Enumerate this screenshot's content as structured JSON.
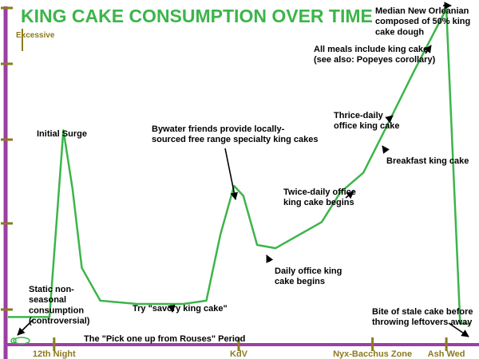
{
  "chart_data": {
    "type": "line",
    "title": "KING CAKE CONSUMPTION OVER TIME",
    "xlabel": "",
    "ylabel": "",
    "y_top_label": "Excessive",
    "xlim": [
      0,
      100
    ],
    "ylim": [
      0,
      100
    ],
    "x_ticks": [
      {
        "label": "12th Night",
        "x": 10
      },
      {
        "label": "KdV",
        "x": 50
      },
      {
        "label": "Nyx-Bacchus Zone",
        "x": 79
      },
      {
        "label": "Ash Wed",
        "x": 95
      }
    ],
    "series": [
      {
        "points": [
          {
            "x": 0,
            "y": 5
          },
          {
            "x": 7,
            "y": 5
          },
          {
            "x": 9,
            "y": 5
          },
          {
            "x": 12,
            "y": 62
          },
          {
            "x": 14,
            "y": 44
          },
          {
            "x": 16,
            "y": 20
          },
          {
            "x": 20,
            "y": 10
          },
          {
            "x": 28,
            "y": 9
          },
          {
            "x": 38,
            "y": 9
          },
          {
            "x": 43,
            "y": 10
          },
          {
            "x": 46,
            "y": 30
          },
          {
            "x": 49,
            "y": 45
          },
          {
            "x": 51,
            "y": 42
          },
          {
            "x": 54,
            "y": 27
          },
          {
            "x": 58,
            "y": 26
          },
          {
            "x": 68,
            "y": 34
          },
          {
            "x": 72,
            "y": 43
          },
          {
            "x": 77,
            "y": 49
          },
          {
            "x": 82,
            "y": 63
          },
          {
            "x": 88,
            "y": 80
          },
          {
            "x": 95,
            "y": 99
          },
          {
            "x": 98,
            "y": 3
          },
          {
            "x": 100,
            "y": 3
          }
        ]
      }
    ],
    "annotations": [
      {
        "lines": [
          "Median New Orleanian",
          "composed of 50% king",
          "cake dough"
        ],
        "x": 95,
        "y": 99
      },
      {
        "lines": [
          "All meals include king cake",
          "(see also: Popeyes corollary)"
        ],
        "x": 89,
        "y": 85
      },
      {
        "lines": [
          "Thrice-daily",
          "office king cake"
        ],
        "x": 83,
        "y": 64
      },
      {
        "lines": [
          "Breakfast king cake"
        ],
        "x": 80,
        "y": 57
      },
      {
        "lines": [
          "Twice-daily office",
          "king cake begins"
        ],
        "x": 73,
        "y": 45
      },
      {
        "lines": [
          "Bywater friends provide locally-",
          "sourced free range specialty king cakes"
        ],
        "x": 49,
        "y": 45
      },
      {
        "lines": [
          "Initial Surge"
        ],
        "x": 12,
        "y": 62
      },
      {
        "lines": [
          "Daily office king",
          "cake begins"
        ],
        "x": 57,
        "y": 26
      },
      {
        "lines": [
          "Static non-",
          "seasonal",
          "consumption",
          "(controversial)"
        ],
        "x": 2,
        "y": 5
      },
      {
        "lines": [
          "Try \"savory king cake\""
        ],
        "x": 37,
        "y": 9
      },
      {
        "lines": [
          "The \"Pick one up from Rouses\" Period"
        ],
        "x": 30,
        "y": 9
      },
      {
        "lines": [
          "Bite of stale cake before",
          "throwing leftovers away"
        ],
        "x": 97,
        "y": 3
      }
    ],
    "grid": false,
    "legend": "none",
    "colors": {
      "line": "#3cb54a",
      "title": "#3cb54a",
      "y_axis": "#9b3fa3",
      "x_axis": "#9b3fa3",
      "ticks": "#8c7a1e",
      "arrows": "#000000"
    }
  }
}
